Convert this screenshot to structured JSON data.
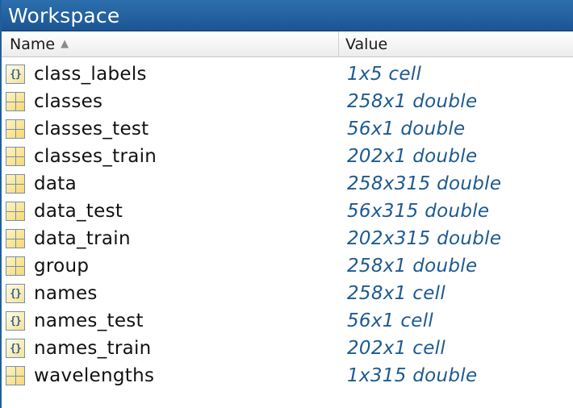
{
  "window": {
    "title": "Workspace"
  },
  "header": {
    "name_label": "Name",
    "value_label": "Value",
    "sort_indicator": "ascending"
  },
  "variables": [
    {
      "name": "class_labels",
      "value": "1x5 cell",
      "icon": "cell-array-icon"
    },
    {
      "name": "classes",
      "value": "258x1 double",
      "icon": "matrix-icon"
    },
    {
      "name": "classes_test",
      "value": "56x1 double",
      "icon": "matrix-icon"
    },
    {
      "name": "classes_train",
      "value": "202x1 double",
      "icon": "matrix-icon"
    },
    {
      "name": "data",
      "value": "258x315 double",
      "icon": "matrix-icon"
    },
    {
      "name": "data_test",
      "value": "56x315 double",
      "icon": "matrix-icon"
    },
    {
      "name": "data_train",
      "value": "202x315 double",
      "icon": "matrix-icon"
    },
    {
      "name": "group",
      "value": "258x1 double",
      "icon": "matrix-icon"
    },
    {
      "name": "names",
      "value": "258x1 cell",
      "icon": "cell-array-icon"
    },
    {
      "name": "names_test",
      "value": "56x1 cell",
      "icon": "cell-array-icon"
    },
    {
      "name": "names_train",
      "value": "202x1 cell",
      "icon": "cell-array-icon"
    },
    {
      "name": "wavelengths",
      "value": "1x315 double",
      "icon": "matrix-icon"
    }
  ],
  "colors": {
    "titlebar": "#1b5592",
    "value_text": "#1d5a92"
  }
}
